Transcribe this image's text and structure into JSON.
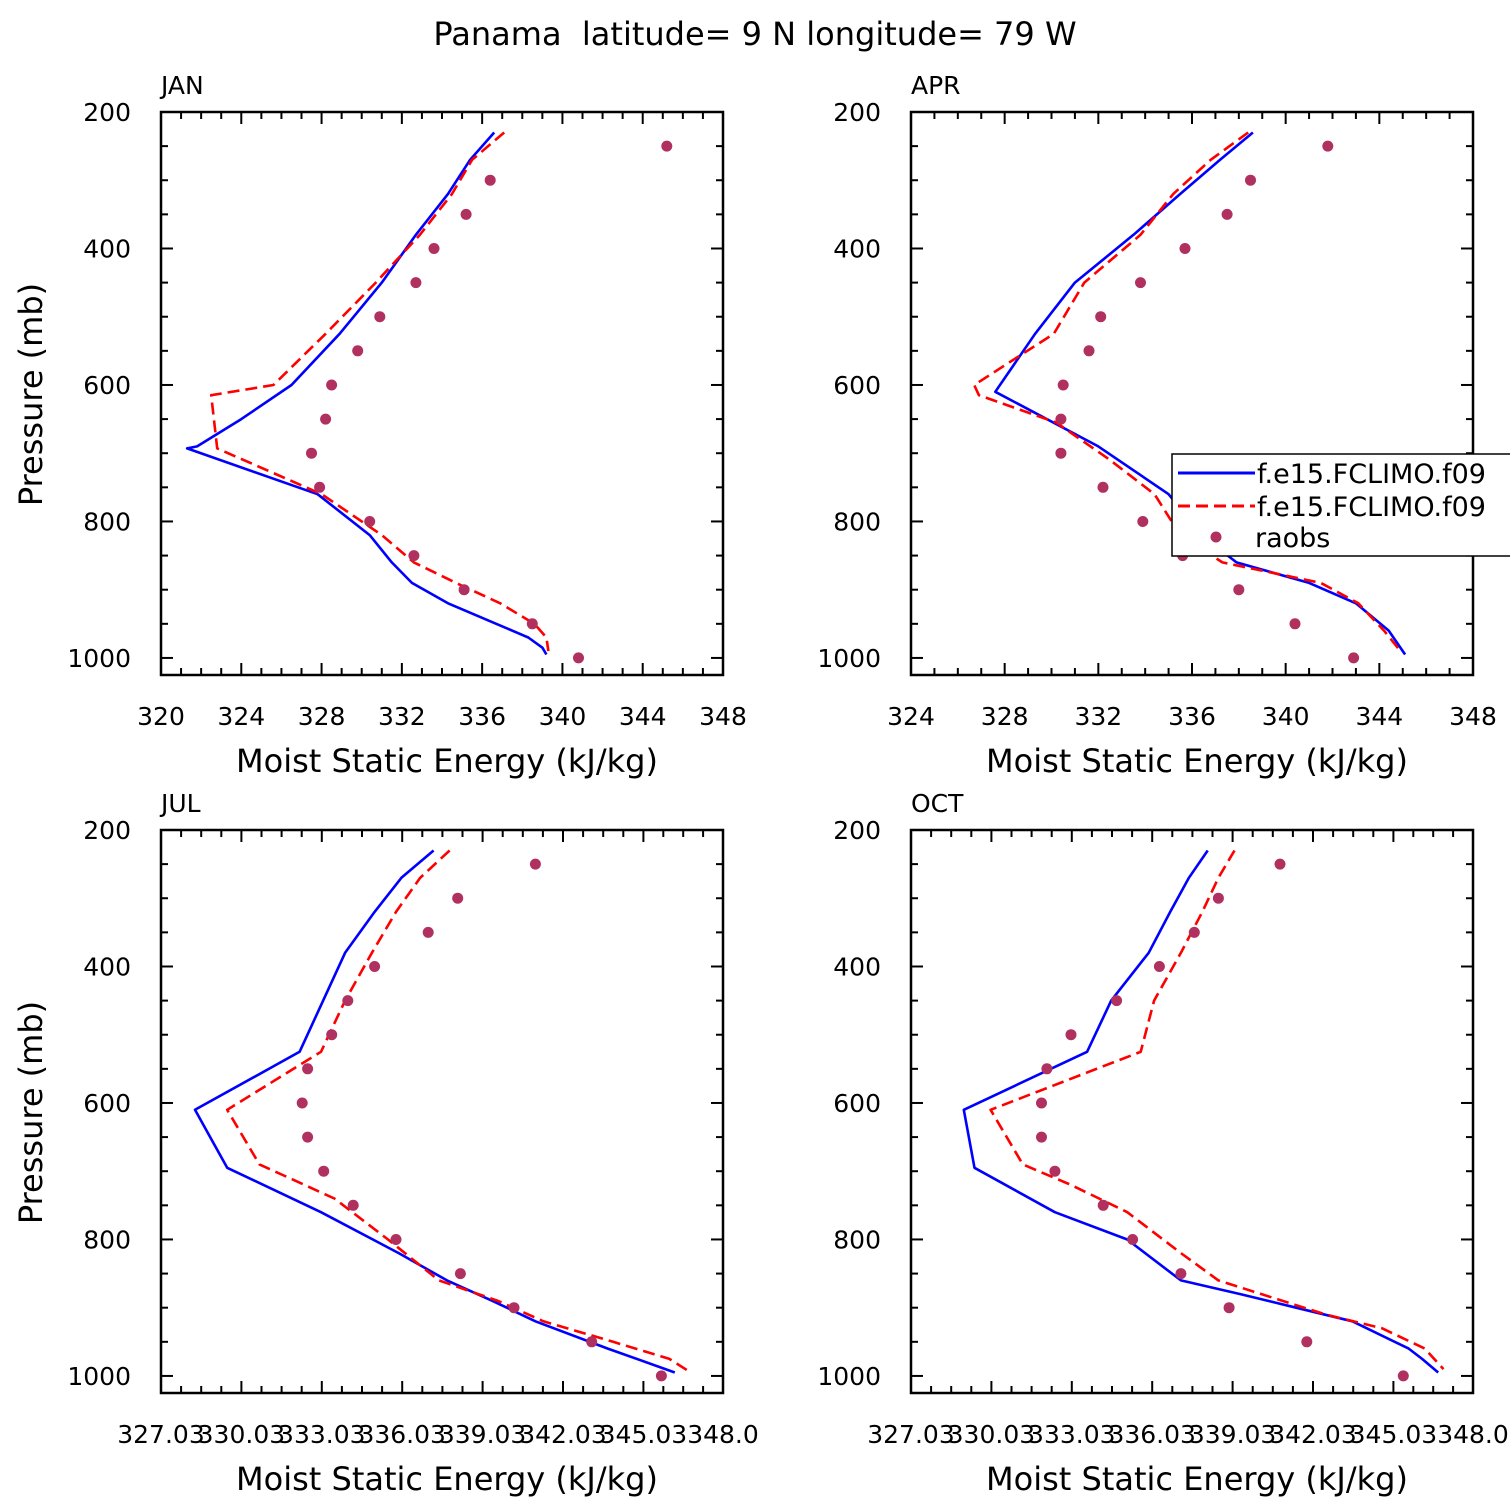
{
  "figure": {
    "title": "Panama  latitude= 9 N longitude= 79 W"
  },
  "legend": {
    "entries": [
      {
        "label": "f.e15.FCLIMO.f09",
        "color": "#0000ff",
        "style": "solid"
      },
      {
        "label": "f.e15.FCLIMO.f09",
        "color": "#ff0000",
        "style": "dashed"
      },
      {
        "label": "raobs",
        "color": "#b03060",
        "style": "marker"
      }
    ]
  },
  "chart_data": [
    {
      "type": "line",
      "title": "JAN",
      "xlabel": "Moist Static Energy (kJ/kg)",
      "ylabel": "Pressure (mb)",
      "xlim": [
        320,
        348
      ],
      "ylim": [
        1000,
        200
      ],
      "xticks": [
        320,
        324,
        328,
        332,
        336,
        340,
        344,
        348
      ],
      "xticklabels": [
        "320",
        "324",
        "328",
        "332",
        "336",
        "340",
        "344",
        "348"
      ],
      "yticks": [
        200,
        400,
        600,
        800,
        1000
      ],
      "yticklabels": [
        "200",
        "400",
        "600",
        "800",
        "1000"
      ],
      "series": [
        {
          "name": "f.e15.FCLIMO.f09",
          "style": "solid",
          "color": "#0000ff",
          "x": [
            336.6,
            335.4,
            334.3,
            332.7,
            331.0,
            328.9,
            326.5,
            324.0,
            321.8,
            321.3,
            327.8,
            330.4,
            331.5,
            332.5,
            334.3,
            336.7,
            338.3,
            339.0,
            339.2
          ],
          "y": [
            230,
            270,
            320,
            380,
            450,
            525,
            600,
            650,
            690,
            693,
            760,
            820,
            860,
            890,
            920,
            950,
            970,
            985,
            995
          ]
        },
        {
          "name": "f.e15.FCLIMO.f09",
          "style": "dashed",
          "color": "#ff0000",
          "x": [
            337.1,
            335.5,
            334.5,
            332.9,
            330.7,
            328.2,
            325.6,
            322.5,
            322.8,
            328.0,
            331.0,
            332.6,
            334.7,
            336.9,
            338.6,
            339.2,
            339.3
          ],
          "y": [
            230,
            270,
            320,
            380,
            450,
            525,
            600,
            615,
            693,
            760,
            820,
            860,
            890,
            920,
            950,
            970,
            990
          ]
        }
      ],
      "points": {
        "name": "raobs",
        "color": "#b03060",
        "x": [
          345.2,
          336.4,
          335.2,
          333.6,
          332.7,
          330.9,
          329.8,
          328.5,
          328.2,
          327.5,
          327.9,
          330.4,
          332.6,
          335.1,
          338.5,
          340.8
        ],
        "y": [
          250,
          300,
          350,
          400,
          450,
          500,
          550,
          600,
          650,
          700,
          750,
          800,
          850,
          900,
          950,
          1000
        ]
      }
    },
    {
      "type": "line",
      "title": "APR",
      "xlabel": "Moist Static Energy (kJ/kg)",
      "ylabel": "",
      "xlim": [
        324,
        348
      ],
      "ylim": [
        1000,
        200
      ],
      "xticks": [
        324,
        328,
        332,
        336,
        340,
        344,
        348
      ],
      "xticklabels": [
        "324",
        "328",
        "332",
        "336",
        "340",
        "344",
        "348"
      ],
      "yticks": [
        200,
        400,
        600,
        800,
        1000
      ],
      "yticklabels": [
        "200",
        "400",
        "600",
        "800",
        "1000"
      ],
      "series": [
        {
          "name": "f.e15.FCLIMO.f09",
          "style": "solid",
          "color": "#0000ff",
          "x": [
            338.6,
            337.2,
            335.5,
            333.5,
            331.0,
            329.3,
            327.6,
            332.0,
            335.0,
            336.4,
            337.9,
            341.0,
            343.0,
            344.4,
            345.1
          ],
          "y": [
            230,
            270,
            320,
            380,
            450,
            525,
            610,
            690,
            760,
            820,
            860,
            890,
            920,
            960,
            995
          ]
        },
        {
          "name": "f.e15.FCLIMO.f09",
          "style": "dashed",
          "color": "#ff0000",
          "x": [
            338.4,
            336.8,
            335.2,
            333.8,
            331.4,
            330.1,
            326.7,
            326.9,
            330.2,
            332.5,
            334.4,
            335.5,
            337.3,
            341.5,
            343.1,
            344.2,
            344.9
          ],
          "y": [
            230,
            270,
            320,
            380,
            450,
            525,
            600,
            615,
            655,
            710,
            760,
            820,
            860,
            890,
            920,
            960,
            990
          ]
        }
      ],
      "points": {
        "name": "raobs",
        "color": "#b03060",
        "x": [
          341.8,
          338.5,
          337.5,
          335.7,
          333.8,
          332.1,
          331.6,
          330.5,
          330.4,
          330.4,
          332.2,
          333.9,
          335.6,
          338.0,
          340.4,
          342.9
        ],
        "y": [
          250,
          300,
          350,
          400,
          450,
          500,
          550,
          600,
          650,
          700,
          750,
          800,
          850,
          900,
          950,
          1000
        ]
      }
    },
    {
      "type": "line",
      "title": "JUL",
      "xlabel": "Moist Static Energy (kJ/kg)",
      "ylabel": "Pressure (mb)",
      "xlim": [
        327.03,
        348.0
      ],
      "ylim": [
        1000,
        200
      ],
      "xticks": [
        327.03,
        330.03,
        333.03,
        336.03,
        339.03,
        342.03,
        345.03,
        348.0
      ],
      "xticklabels": [
        "327.03",
        "330.03",
        "333.03",
        "336.03",
        "339.03",
        "342.03",
        "345.03",
        "348.0"
      ],
      "yticks": [
        200,
        400,
        600,
        800,
        1000
      ],
      "yticklabels": [
        "200",
        "400",
        "600",
        "800",
        "1000"
      ],
      "series": [
        {
          "name": "f.e15.FCLIMO.f09",
          "style": "solid",
          "color": "#0000ff",
          "x": [
            337.2,
            336.0,
            335.0,
            333.9,
            332.2,
            328.3,
            329.5,
            333.0,
            335.9,
            337.7,
            339.4,
            341.0,
            343.7,
            346.2
          ],
          "y": [
            230,
            270,
            320,
            380,
            525,
            610,
            695,
            760,
            820,
            860,
            890,
            920,
            960,
            995
          ]
        },
        {
          "name": "f.e15.FCLIMO.f09",
          "style": "dashed",
          "color": "#ff0000",
          "x": [
            337.8,
            336.7,
            335.8,
            334.9,
            333.9,
            333.0,
            329.5,
            330.7,
            333.5,
            335.5,
            337.4,
            339.6,
            341.3,
            343.9,
            346.0,
            346.8
          ],
          "y": [
            230,
            270,
            320,
            380,
            450,
            525,
            610,
            690,
            740,
            800,
            860,
            890,
            920,
            950,
            975,
            995
          ]
        }
      ],
      "points": {
        "name": "raobs",
        "color": "#b03060",
        "x": [
          341.0,
          338.1,
          337.0,
          335.0,
          334.0,
          333.4,
          332.5,
          332.3,
          332.5,
          333.1,
          334.2,
          335.8,
          338.2,
          340.2,
          343.1,
          345.7
        ],
        "y": [
          250,
          300,
          350,
          400,
          450,
          500,
          550,
          600,
          650,
          700,
          750,
          800,
          850,
          900,
          950,
          1000
        ]
      }
    },
    {
      "type": "line",
      "title": "OCT",
      "xlabel": "Moist Static Energy (kJ/kg)",
      "ylabel": "",
      "xlim": [
        327.03,
        348.0
      ],
      "ylim": [
        1000,
        200
      ],
      "xticks": [
        327.03,
        330.03,
        333.03,
        336.03,
        339.03,
        342.03,
        345.03,
        348.0
      ],
      "xticklabels": [
        "327.03",
        "330.03",
        "333.03",
        "336.03",
        "339.03",
        "342.03",
        "345.03",
        "348.0"
      ],
      "yticks": [
        200,
        400,
        600,
        800,
        1000
      ],
      "yticklabels": [
        "200",
        "400",
        "600",
        "800",
        "1000"
      ],
      "series": [
        {
          "name": "f.e15.FCLIMO.f09",
          "style": "solid",
          "color": "#0000ff",
          "x": [
            338.1,
            337.4,
            336.7,
            335.9,
            334.5,
            333.6,
            329.0,
            329.4,
            332.4,
            335.1,
            337.1,
            339.3,
            341.4,
            343.5,
            345.6,
            346.1,
            346.7
          ],
          "y": [
            230,
            270,
            320,
            380,
            450,
            525,
            610,
            695,
            760,
            800,
            860,
            880,
            900,
            920,
            960,
            975,
            995
          ]
        },
        {
          "name": "f.e15.FCLIMO.f09",
          "style": "dashed",
          "color": "#ff0000",
          "x": [
            339.1,
            338.5,
            337.9,
            337.1,
            336.1,
            335.6,
            330.0,
            331.2,
            333.0,
            335.1,
            337.1,
            338.5,
            340.5,
            342.5,
            344.6,
            346.2,
            346.9
          ],
          "y": [
            230,
            270,
            320,
            380,
            450,
            525,
            610,
            690,
            720,
            760,
            820,
            860,
            885,
            910,
            930,
            960,
            990
          ]
        }
      ],
      "points": {
        "name": "raobs",
        "color": "#b03060",
        "x": [
          340.8,
          338.5,
          337.6,
          336.3,
          334.7,
          333.0,
          332.1,
          331.9,
          331.9,
          332.4,
          334.2,
          335.3,
          337.1,
          338.9,
          341.8,
          345.4
        ],
        "y": [
          250,
          300,
          350,
          400,
          450,
          500,
          550,
          600,
          650,
          700,
          750,
          800,
          850,
          900,
          950,
          1000
        ]
      }
    }
  ]
}
